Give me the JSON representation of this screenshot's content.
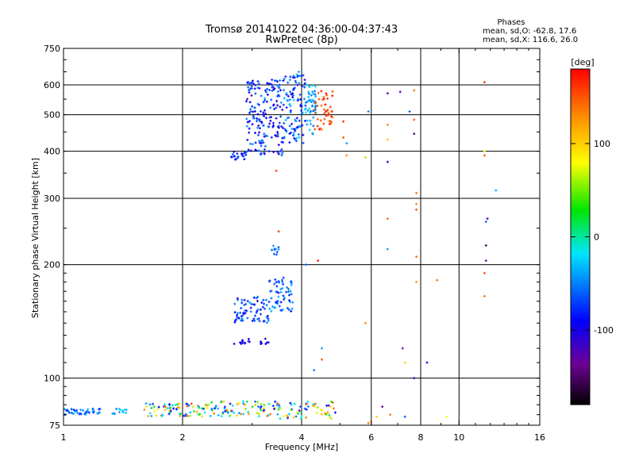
{
  "chart_data": {
    "type": "scatter",
    "title": "Tromsø 20141022 04:36:00-04:37:43",
    "subtitle": "RwPretec (8p)",
    "xlabel": "Frequency [MHz]",
    "ylabel": "Stationary phase Virtual Height [km]",
    "x_scale": "log",
    "y_scale": "log",
    "xlim": [
      1,
      16
    ],
    "ylim": [
      75,
      750
    ],
    "x_ticks": [
      1,
      2,
      4,
      6,
      8,
      10,
      16
    ],
    "y_ticks": [
      75,
      100,
      200,
      300,
      400,
      500,
      600,
      750
    ],
    "grid": true,
    "phases_box": {
      "title": "Phases",
      "line1": "mean, sd,O: -62.8, 17.6",
      "line2": "mean, sd,X: 116.6, 26.0"
    },
    "colorbar": {
      "label": "[deg]",
      "ticks": [
        100,
        0,
        -100
      ],
      "range": [
        -180,
        180
      ]
    },
    "clusters": [
      {
        "x": [
          1.0,
          1.25
        ],
        "y": [
          80,
          83
        ],
        "n": 45,
        "phase": [
          -80,
          -30
        ]
      },
      {
        "x": [
          1.33,
          1.45
        ],
        "y": [
          80,
          84
        ],
        "n": 12,
        "phase": [
          -50,
          -20
        ]
      },
      {
        "x": [
          1.6,
          2.3
        ],
        "y": [
          79,
          86
        ],
        "n": 70,
        "phase": [
          -100,
          160
        ]
      },
      {
        "x": [
          2.3,
          3.2
        ],
        "y": [
          79,
          87
        ],
        "n": 60,
        "phase": [
          -110,
          140
        ]
      },
      {
        "x": [
          3.2,
          4.9
        ],
        "y": [
          78,
          87
        ],
        "n": 70,
        "phase": [
          -120,
          160
        ]
      },
      {
        "x": [
          2.6,
          2.9
        ],
        "y": [
          380,
          400
        ],
        "n": 20,
        "phase": [
          -100,
          -60
        ]
      },
      {
        "x": [
          2.9,
          3.6
        ],
        "y": [
          390,
          620
        ],
        "n": 180,
        "phase": [
          -120,
          -40
        ]
      },
      {
        "x": [
          3.6,
          4.1
        ],
        "y": [
          420,
          650
        ],
        "n": 100,
        "phase": [
          -100,
          -30
        ]
      },
      {
        "x": [
          4.1,
          4.4
        ],
        "y": [
          440,
          600
        ],
        "n": 50,
        "phase": [
          -60,
          -20
        ]
      },
      {
        "x": [
          4.3,
          4.8
        ],
        "y": [
          455,
          580
        ],
        "n": 45,
        "phase": [
          140,
          175
        ]
      },
      {
        "x": [
          2.7,
          3.3
        ],
        "y": [
          140,
          165
        ],
        "n": 70,
        "phase": [
          -110,
          -40
        ]
      },
      {
        "x": [
          3.3,
          3.8
        ],
        "y": [
          150,
          185
        ],
        "n": 60,
        "phase": [
          -90,
          -30
        ]
      },
      {
        "x": [
          2.7,
          3.3
        ],
        "y": [
          122,
          128
        ],
        "n": 20,
        "phase": [
          -120,
          -80
        ]
      },
      {
        "x": [
          3.35,
          3.5
        ],
        "y": [
          212,
          225
        ],
        "n": 10,
        "phase": [
          -70,
          -40
        ]
      }
    ],
    "points": [
      {
        "x": 3.5,
        "y": 245,
        "phase": 165
      },
      {
        "x": 3.45,
        "y": 355,
        "phase": 160
      },
      {
        "x": 4.4,
        "y": 205,
        "phase": 170
      },
      {
        "x": 4.1,
        "y": 200,
        "phase": -60
      },
      {
        "x": 4.3,
        "y": 105,
        "phase": -50
      },
      {
        "x": 4.5,
        "y": 120,
        "phase": -40
      },
      {
        "x": 4.5,
        "y": 112,
        "phase": 150
      },
      {
        "x": 5.1,
        "y": 480,
        "phase": 170
      },
      {
        "x": 5.2,
        "y": 390,
        "phase": 130
      },
      {
        "x": 5.1,
        "y": 435,
        "phase": 150
      },
      {
        "x": 5.9,
        "y": 510,
        "phase": -50
      },
      {
        "x": 5.8,
        "y": 385,
        "phase": 60
      },
      {
        "x": 5.8,
        "y": 140,
        "phase": 130
      },
      {
        "x": 5.2,
        "y": 420,
        "phase": -40
      },
      {
        "x": 6.6,
        "y": 570,
        "phase": -130
      },
      {
        "x": 6.6,
        "y": 470,
        "phase": 130
      },
      {
        "x": 6.6,
        "y": 430,
        "phase": 100
      },
      {
        "x": 6.6,
        "y": 375,
        "phase": -110
      },
      {
        "x": 6.6,
        "y": 265,
        "phase": 140
      },
      {
        "x": 6.6,
        "y": 220,
        "phase": -40
      },
      {
        "x": 7.1,
        "y": 575,
        "phase": -120
      },
      {
        "x": 7.2,
        "y": 120,
        "phase": -130
      },
      {
        "x": 7.3,
        "y": 110,
        "phase": 100
      },
      {
        "x": 7.7,
        "y": 580,
        "phase": 140
      },
      {
        "x": 7.7,
        "y": 485,
        "phase": 150
      },
      {
        "x": 7.7,
        "y": 445,
        "phase": -150
      },
      {
        "x": 7.8,
        "y": 310,
        "phase": 140
      },
      {
        "x": 7.8,
        "y": 290,
        "phase": 130
      },
      {
        "x": 7.8,
        "y": 280,
        "phase": 150
      },
      {
        "x": 7.8,
        "y": 210,
        "phase": 140
      },
      {
        "x": 7.8,
        "y": 180,
        "phase": 120
      },
      {
        "x": 7.7,
        "y": 100,
        "phase": -110
      },
      {
        "x": 8.3,
        "y": 110,
        "phase": -110
      },
      {
        "x": 8.8,
        "y": 182,
        "phase": 140
      },
      {
        "x": 7.5,
        "y": 510,
        "phase": -60
      },
      {
        "x": 11.6,
        "y": 610,
        "phase": 160
      },
      {
        "x": 11.6,
        "y": 400,
        "phase": 80
      },
      {
        "x": 11.6,
        "y": 390,
        "phase": 150
      },
      {
        "x": 11.8,
        "y": 265,
        "phase": -120
      },
      {
        "x": 11.7,
        "y": 260,
        "phase": -60
      },
      {
        "x": 11.7,
        "y": 225,
        "phase": -150
      },
      {
        "x": 11.7,
        "y": 205,
        "phase": -130
      },
      {
        "x": 11.6,
        "y": 190,
        "phase": 150
      },
      {
        "x": 11.6,
        "y": 165,
        "phase": 140
      },
      {
        "x": 12.4,
        "y": 315,
        "phase": -40
      },
      {
        "x": 6.4,
        "y": 84,
        "phase": -130
      },
      {
        "x": 6.7,
        "y": 80,
        "phase": 140
      },
      {
        "x": 9.3,
        "y": 79,
        "phase": 80
      },
      {
        "x": 7.3,
        "y": 79,
        "phase": -60
      },
      {
        "x": 6.2,
        "y": 79,
        "phase": 100
      },
      {
        "x": 6.0,
        "y": 77,
        "phase": 130
      },
      {
        "x": 5.9,
        "y": 76,
        "phase": 140
      }
    ]
  }
}
